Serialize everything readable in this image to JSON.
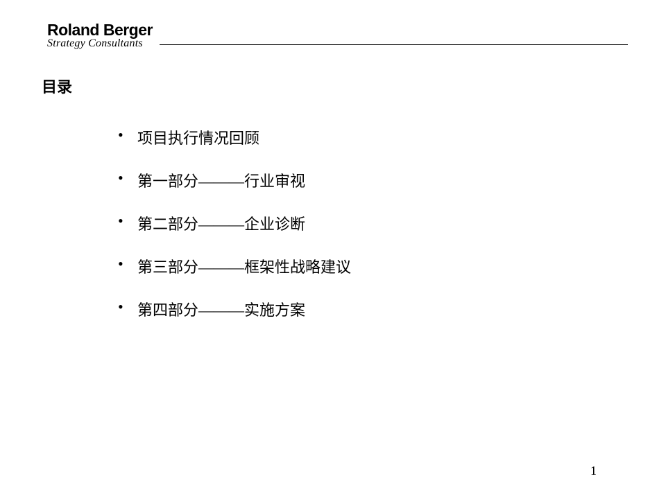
{
  "header": {
    "logo_primary": "Roland Berger",
    "logo_secondary": "Strategy Consultants"
  },
  "title": "目录",
  "toc": {
    "items": [
      "项目执行情况回顾",
      "第一部分———行业审视",
      "第二部分———企业诊断",
      "第三部分———框架性战略建议",
      "第四部分———实施方案"
    ]
  },
  "page_number": "1",
  "styling": {
    "background_color": "#ffffff",
    "text_color": "#000000",
    "title_fontsize": 22,
    "item_fontsize": 22,
    "logo_primary_fontsize": 23,
    "logo_secondary_fontsize": 16,
    "item_spacing": 30,
    "line_color": "#000000"
  }
}
